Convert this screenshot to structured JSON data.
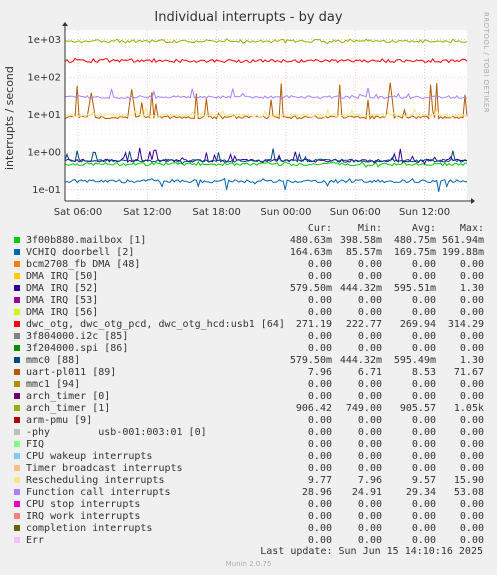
{
  "title": "Individual interrupts - by day",
  "ylabel": "interrupts / second",
  "side_note": "RRDTOOL / TOBI OETIKER",
  "legend_header": {
    "cur": "Cur:",
    "min": "Min:",
    "avg": "Avg:",
    "max": "Max:"
  },
  "last_update": "Last update: Sun Jun 15 14:10:16 2025",
  "version": "Munin 2.0.75",
  "chart_data": {
    "type": "line",
    "title": "Individual interrupts - by day",
    "ylabel": "interrupts / second",
    "y_scale": "log",
    "ylim": [
      0.05,
      1800
    ],
    "y_ticks": [
      {
        "value": 0.1,
        "label": "1e-01"
      },
      {
        "value": 1,
        "label": "1e+00"
      },
      {
        "value": 10,
        "label": "1e+01"
      },
      {
        "value": 100,
        "label": "1e+02"
      },
      {
        "value": 1000,
        "label": "1e+03"
      }
    ],
    "x_ticks": [
      "Sat 06:00",
      "Sat 12:00",
      "Sat 18:00",
      "Sun 00:00",
      "Sun 06:00",
      "Sun 12:00"
    ],
    "grid": true,
    "series": [
      {
        "name": "3f00b880.mailbox [1]",
        "color": "#00cc00",
        "cur": "480.63m",
        "min": "398.58m",
        "avg": "480.75m",
        "max": "561.94m"
      },
      {
        "name": "VCHIQ doorbell [2]",
        "color": "#0066b3",
        "cur": "164.63m",
        "min": "85.57m",
        "avg": "169.75m",
        "max": "199.88m"
      },
      {
        "name": "bcm2708_fb DMA [48]",
        "color": "#ff8000",
        "cur": "0.00",
        "min": "0.00",
        "avg": "0.00",
        "max": "0.00"
      },
      {
        "name": "DMA IRQ [50]",
        "color": "#ffcc00",
        "cur": "0.00",
        "min": "0.00",
        "avg": "0.00",
        "max": "0.00"
      },
      {
        "name": "DMA IRQ [52]",
        "color": "#330099",
        "cur": "579.50m",
        "min": "444.32m",
        "avg": "595.51m",
        "max": "1.30"
      },
      {
        "name": "DMA IRQ [53]",
        "color": "#990099",
        "cur": "0.00",
        "min": "0.00",
        "avg": "0.00",
        "max": "0.00"
      },
      {
        "name": "DMA IRQ [56]",
        "color": "#ccff00",
        "cur": "0.00",
        "min": "0.00",
        "avg": "0.00",
        "max": "0.00"
      },
      {
        "name": "dwc_otg, dwc_otg_pcd, dwc_otg_hcd:usb1 [64]",
        "color": "#ff0000",
        "cur": "271.19",
        "min": "222.77",
        "avg": "269.94",
        "max": "314.29"
      },
      {
        "name": "3f804000.i2c [85]",
        "color": "#808080",
        "cur": "0.00",
        "min": "0.00",
        "avg": "0.00",
        "max": "0.00"
      },
      {
        "name": "3f204000.spi [86]",
        "color": "#008f00",
        "cur": "0.00",
        "min": "0.00",
        "avg": "0.00",
        "max": "0.00"
      },
      {
        "name": "mmc0 [88]",
        "color": "#00487d",
        "cur": "579.50m",
        "min": "444.32m",
        "avg": "595.49m",
        "max": "1.30"
      },
      {
        "name": "uart-pl011 [89]",
        "color": "#b35a00",
        "cur": "7.96",
        "min": "6.71",
        "avg": "8.53",
        "max": "71.67"
      },
      {
        "name": "mmc1 [94]",
        "color": "#b38f00",
        "cur": "0.00",
        "min": "0.00",
        "avg": "0.00",
        "max": "0.00"
      },
      {
        "name": "arch_timer [0]",
        "color": "#6b006b",
        "cur": "0.00",
        "min": "0.00",
        "avg": "0.00",
        "max": "0.00"
      },
      {
        "name": "arch_timer [1]",
        "color": "#8fb300",
        "cur": "906.42",
        "min": "749.00",
        "avg": "905.57",
        "max": "1.05k"
      },
      {
        "name": "arm-pmu [9]",
        "color": "#b30000",
        "cur": "0.00",
        "min": "0.00",
        "avg": "0.00",
        "max": "0.00"
      },
      {
        "name": "-phy        usb-001:003:01 [0]",
        "color": "#bebebe",
        "cur": "0.00",
        "min": "0.00",
        "avg": "0.00",
        "max": "0.00"
      },
      {
        "name": "FIQ",
        "color": "#80ff80",
        "cur": "0.00",
        "min": "0.00",
        "avg": "0.00",
        "max": "0.00"
      },
      {
        "name": "CPU wakeup interrupts",
        "color": "#80c9ff",
        "cur": "0.00",
        "min": "0.00",
        "avg": "0.00",
        "max": "0.00"
      },
      {
        "name": "Timer broadcast interrupts",
        "color": "#ffc080",
        "cur": "0.00",
        "min": "0.00",
        "avg": "0.00",
        "max": "0.00"
      },
      {
        "name": "Rescheduling interrupts",
        "color": "#ffe680",
        "cur": "9.77",
        "min": "7.96",
        "avg": "9.57",
        "max": "15.90"
      },
      {
        "name": "Function call interrupts",
        "color": "#aa80ff",
        "cur": "28.96",
        "min": "24.91",
        "avg": "29.34",
        "max": "53.08"
      },
      {
        "name": "CPU stop interrupts",
        "color": "#ee00cc",
        "cur": "0.00",
        "min": "0.00",
        "avg": "0.00",
        "max": "0.00"
      },
      {
        "name": "IRQ work interrupts",
        "color": "#ff8080",
        "cur": "0.00",
        "min": "0.00",
        "avg": "0.00",
        "max": "0.00"
      },
      {
        "name": "completion interrupts",
        "color": "#666600",
        "cur": "0.00",
        "min": "0.00",
        "avg": "0.00",
        "max": "0.00"
      },
      {
        "name": "Err",
        "color": "#ffbfff",
        "cur": "0.00",
        "min": "0.00",
        "avg": "0.00",
        "max": "0.00"
      }
    ]
  }
}
